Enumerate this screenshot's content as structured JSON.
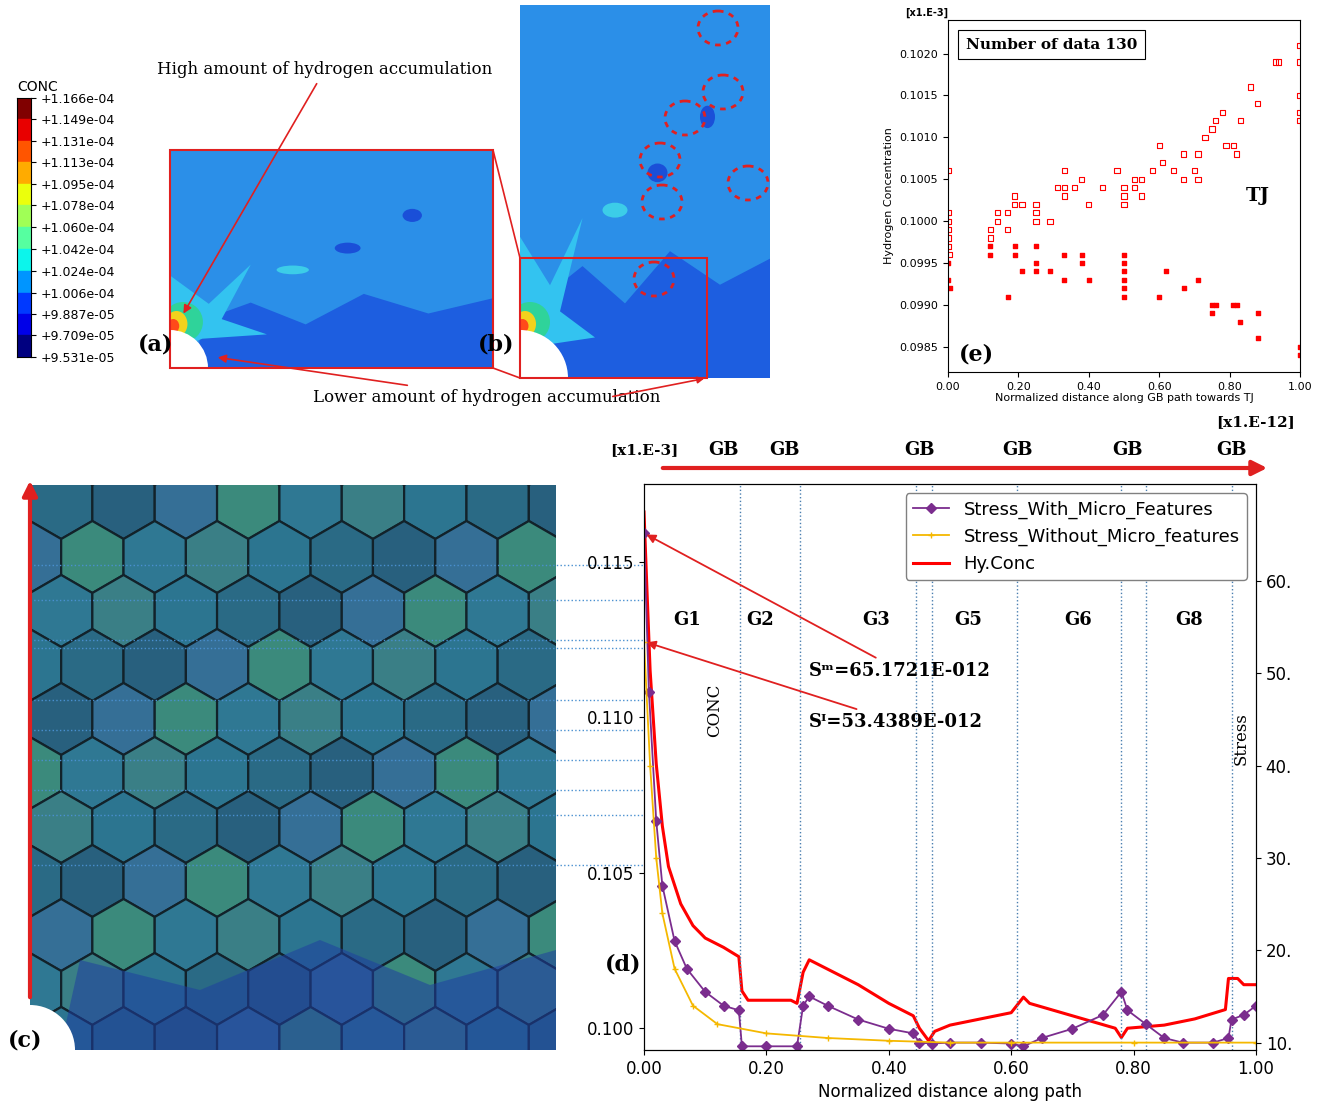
{
  "chart_data": [
    {
      "type": "line",
      "panel_label": "(d)",
      "xlabel": "Normalized distance along path",
      "xlim": [
        0,
        1
      ],
      "xticks": [
        {
          "value": 0,
          "label": "0.00"
        },
        {
          "value": 0.2,
          "label": "0.20"
        },
        {
          "value": 0.4,
          "label": "0.40"
        },
        {
          "value": 0.6,
          "label": "0.60"
        },
        {
          "value": 0.8,
          "label": "0.80"
        },
        {
          "value": 1.0,
          "label": "1.00"
        }
      ],
      "ylabel": "CONC",
      "y_multiplier": "[x1.E-3]",
      "ylim": [
        0.0993,
        0.1175
      ],
      "yticks": [
        {
          "value": 0.1,
          "label": "0.100"
        },
        {
          "value": 0.105,
          "label": "0.105"
        },
        {
          "value": 0.11,
          "label": "0.110"
        },
        {
          "value": 0.115,
          "label": "0.115"
        }
      ],
      "y2label": "Stress",
      "y2_multiplier": "[x1.E-12]",
      "y2lim": [
        9.2,
        70.5
      ],
      "y2ticks": [
        {
          "value": 10,
          "label": "10."
        },
        {
          "value": 20,
          "label": "20."
        },
        {
          "value": 30,
          "label": "30."
        },
        {
          "value": 40,
          "label": "40."
        },
        {
          "value": 50,
          "label": "50."
        },
        {
          "value": 60,
          "label": "60."
        }
      ],
      "legend": "upper right",
      "series": [
        {
          "name": "Stress_With_Micro_Features",
          "color": "#7b2d8e",
          "marker": "diamond",
          "line_style": "solid",
          "axis": "y2",
          "x": [
            0.0,
            0.008,
            0.02,
            0.03,
            0.05,
            0.07,
            0.1,
            0.13,
            0.155,
            0.16,
            0.2,
            0.25,
            0.26,
            0.27,
            0.3,
            0.35,
            0.4,
            0.44,
            0.45,
            0.47,
            0.5,
            0.55,
            0.6,
            0.62,
            0.65,
            0.7,
            0.75,
            0.78,
            0.79,
            0.82,
            0.85,
            0.88,
            0.93,
            0.955,
            0.96,
            0.98,
            1.0
          ],
          "values": [
            65.1721,
            48,
            34,
            27,
            21,
            18,
            15.5,
            14,
            13.5,
            9.6,
            9.6,
            9.6,
            14,
            15,
            14,
            12.5,
            11.5,
            11,
            10,
            9.9,
            10,
            10,
            9.9,
            9.6,
            10.5,
            11.5,
            13,
            15.5,
            13.5,
            12,
            10.5,
            10,
            10,
            10.5,
            12.5,
            13,
            14
          ]
        },
        {
          "name": "Stress_Without_Micro_features",
          "color": "#f5b800",
          "marker": "plus",
          "line_style": "solid",
          "axis": "y2",
          "x": [
            0.0,
            0.01,
            0.02,
            0.03,
            0.05,
            0.08,
            0.12,
            0.2,
            0.3,
            0.4,
            0.5,
            0.6,
            0.8,
            1.0
          ],
          "values": [
            53.4389,
            40,
            30,
            24,
            18,
            14,
            12,
            11,
            10.5,
            10.2,
            10,
            10,
            10,
            10
          ]
        },
        {
          "name": "Hy.Conc",
          "color": "#ff0000",
          "marker": "none",
          "line_style": "solid",
          "axis": "y",
          "x": [
            0.0,
            0.005,
            0.01,
            0.02,
            0.03,
            0.04,
            0.06,
            0.08,
            0.1,
            0.13,
            0.155,
            0.16,
            0.17,
            0.2,
            0.24,
            0.25,
            0.26,
            0.27,
            0.3,
            0.35,
            0.4,
            0.44,
            0.45,
            0.465,
            0.475,
            0.5,
            0.55,
            0.6,
            0.62,
            0.63,
            0.7,
            0.77,
            0.78,
            0.79,
            0.85,
            0.9,
            0.95,
            0.955,
            0.97,
            0.98,
            1.0
          ],
          "values": [
            0.1166,
            0.114,
            0.1115,
            0.1085,
            0.1065,
            0.1052,
            0.104,
            0.1033,
            0.1029,
            0.1026,
            0.1023,
            0.1012,
            0.1009,
            0.1009,
            0.1009,
            0.1008,
            0.1018,
            0.1022,
            0.1019,
            0.1014,
            0.1008,
            0.1004,
            0.1,
            0.0996,
            0.0999,
            0.1001,
            0.1003,
            0.1005,
            0.101,
            0.1008,
            0.1004,
            0.1,
            0.0997,
            0.1,
            0.1001,
            0.1003,
            0.1006,
            0.1016,
            0.1016,
            0.1014,
            0.1014
          ]
        }
      ],
      "grain_boundaries": [
        0.157,
        0.255,
        0.445,
        0.47,
        0.61,
        0.78,
        0.82,
        0.96
      ],
      "top_labels": [
        {
          "text": "GB",
          "x": 0.13
        },
        {
          "text": "GB",
          "x": 0.23
        },
        {
          "text": "GB",
          "x": 0.45
        },
        {
          "text": "GB",
          "x": 0.61
        },
        {
          "text": "GB",
          "x": 0.79
        },
        {
          "text": "GB",
          "x": 0.96
        }
      ],
      "grain_labels": [
        {
          "text": "G1",
          "x": 0.07
        },
        {
          "text": "G2",
          "x": 0.19
        },
        {
          "text": "G3",
          "x": 0.38
        },
        {
          "text": "G5",
          "x": 0.53
        },
        {
          "text": "G6",
          "x": 0.71
        },
        {
          "text": "G8",
          "x": 0.89
        }
      ],
      "annotations": [
        {
          "text": "Sᵐ=65.1721E-012",
          "series": "Stress_With_Micro_Features"
        },
        {
          "text": "Sᴵ=53.4389E-012",
          "series": "Stress_Without_Micro_features"
        }
      ]
    },
    {
      "type": "scatter",
      "panel_label": "(e)",
      "xlabel": "Normalized distance along GB path towards TJ",
      "ylabel": "Hydrogen Concentration",
      "y_multiplier": "[x1.E-3]",
      "text_box": "Number of data 130",
      "label_text": "TJ",
      "xlim": [
        0,
        1
      ],
      "xticks": [
        {
          "value": 0,
          "label": "0.00"
        },
        {
          "value": 0.2,
          "label": "0.20"
        },
        {
          "value": 0.4,
          "label": "0.40"
        },
        {
          "value": 0.6,
          "label": "0.60"
        },
        {
          "value": 0.8,
          "label": "0.80"
        },
        {
          "value": 1.0,
          "label": "1.00"
        }
      ],
      "ylim": [
        0.0982,
        0.1024
      ],
      "yticks": [
        {
          "value": 0.0985,
          "label": "0.0985"
        },
        {
          "value": 0.099,
          "label": "0.0990"
        },
        {
          "value": 0.0995,
          "label": "0.0995"
        },
        {
          "value": 0.1,
          "label": "0.1000"
        },
        {
          "value": 0.1005,
          "label": "0.1005"
        },
        {
          "value": 0.101,
          "label": "0.1010"
        },
        {
          "value": 0.1015,
          "label": "0.1015"
        },
        {
          "value": 0.102,
          "label": "0.1020"
        }
      ],
      "series": [
        {
          "color": "#ff0000",
          "marker": "open_square",
          "x": [
            0,
            0,
            0,
            0,
            0,
            0,
            0.005,
            0.12,
            0.12,
            0.14,
            0.14,
            0.17,
            0.17,
            0.19,
            0.19,
            0.21,
            0.25,
            0.25,
            0.25,
            0.29,
            0.31,
            0.33,
            0.33,
            0.33,
            0.36,
            0.38,
            0.4,
            0.44,
            0.48,
            0.5,
            0.5,
            0.5,
            0.53,
            0.53,
            0.55,
            0.55,
            0.58,
            0.6,
            0.61,
            0.64,
            0.67,
            0.67,
            0.7,
            0.71,
            0.71,
            0.73,
            0.75,
            0.76,
            0.78,
            0.79,
            0.81,
            0.82,
            0.83,
            0.86,
            0.88,
            0.93,
            0.94,
            1.0,
            1.0,
            1.0,
            1.0,
            1.0
          ],
          "values": [
            0.1006,
            0.1001,
            0.1,
            0.0999,
            0.0998,
            0.0997,
            0.0996,
            0.0998,
            0.0999,
            0.1001,
            0.1,
            0.1001,
            0.0999,
            0.1003,
            0.1002,
            0.1002,
            0.1001,
            0.1,
            0.1002,
            0.1,
            0.1004,
            0.1003,
            0.1006,
            0.1004,
            0.1004,
            0.1005,
            0.1002,
            0.1004,
            0.1006,
            0.1004,
            0.1002,
            0.1003,
            0.1005,
            0.1004,
            0.1003,
            0.1005,
            0.1006,
            0.1009,
            0.1007,
            0.1006,
            0.1008,
            0.1005,
            0.1006,
            0.1005,
            0.1008,
            0.101,
            0.1011,
            0.1012,
            0.1013,
            0.1009,
            0.1009,
            0.1008,
            0.1012,
            0.1016,
            0.1014,
            0.1019,
            0.1019,
            0.1021,
            0.1019,
            0.1015,
            0.1013,
            0.1012
          ]
        },
        {
          "color": "#ff0000",
          "marker": "square",
          "x": [
            0,
            0,
            0.005,
            0.12,
            0.12,
            0.17,
            0.19,
            0.19,
            0.21,
            0.25,
            0.25,
            0.25,
            0.29,
            0.33,
            0.33,
            0.38,
            0.38,
            0.4,
            0.5,
            0.5,
            0.5,
            0.5,
            0.5,
            0.5,
            0.6,
            0.62,
            0.67,
            0.71,
            0.75,
            0.75,
            0.76,
            0.81,
            0.82,
            0.83,
            0.88,
            0.88,
            1.0,
            1.0
          ],
          "values": [
            0.0995,
            0.0993,
            0.0992,
            0.0997,
            0.0996,
            0.0991,
            0.0997,
            0.0996,
            0.0994,
            0.0997,
            0.0995,
            0.0994,
            0.0994,
            0.0996,
            0.0993,
            0.0996,
            0.0995,
            0.0993,
            0.0996,
            0.0995,
            0.0994,
            0.0993,
            0.0992,
            0.0991,
            0.0991,
            0.0994,
            0.0992,
            0.0993,
            0.099,
            0.0989,
            0.099,
            0.099,
            0.099,
            0.0988,
            0.0989,
            0.0986,
            0.0985,
            0.0984
          ]
        }
      ]
    }
  ],
  "contour_legend": {
    "label": "CONC",
    "range": [
      9.531e-05,
      0.0001166
    ],
    "ticks": [
      {
        "value": 0.0001166,
        "label": "+1.166e-04"
      },
      {
        "value": 0.0001149,
        "label": "+1.149e-04"
      },
      {
        "value": 0.0001131,
        "label": "+1.131e-04"
      },
      {
        "value": 0.0001113,
        "label": "+1.113e-04"
      },
      {
        "value": 0.0001095,
        "label": "+1.095e-04"
      },
      {
        "value": 0.0001078,
        "label": "+1.078e-04"
      },
      {
        "value": 0.000106,
        "label": "+1.060e-04"
      },
      {
        "value": 0.0001042,
        "label": "+1.042e-04"
      },
      {
        "value": 0.0001024,
        "label": "+1.024e-04"
      },
      {
        "value": 0.0001006,
        "label": "+1.006e-04"
      },
      {
        "value": 9.887e-05,
        "label": "+9.887e-05"
      },
      {
        "value": 9.709e-05,
        "label": "+9.709e-05"
      },
      {
        "value": 9.531e-05,
        "label": "+9.531e-05"
      }
    ]
  },
  "panel_labels": [
    "(a)",
    "(b)",
    "(c)"
  ],
  "notes": {
    "high": "High amount of hydrogen accumulation",
    "low": "Lower amount of hydrogen accumulation"
  }
}
